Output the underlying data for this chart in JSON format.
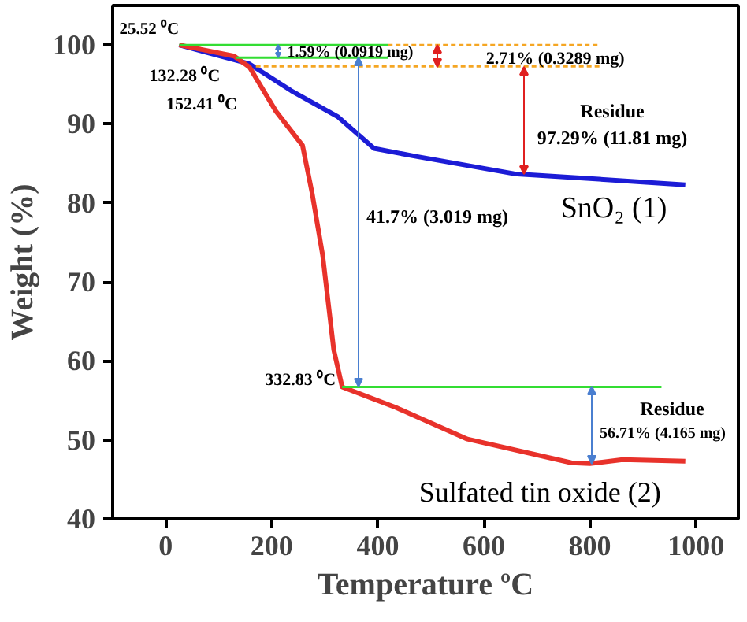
{
  "chart_data": {
    "type": "line",
    "xlabel": "Temperature ºC",
    "ylabel": "Weight (%)",
    "xlim": [
      -100,
      1080
    ],
    "ylim": [
      40,
      105
    ],
    "xticks": [
      0,
      200,
      400,
      600,
      800,
      1000
    ],
    "yticks": [
      40,
      50,
      60,
      70,
      80,
      90,
      100
    ],
    "grid": false,
    "line_style": "solid",
    "marker": "none",
    "series": [
      {
        "color": "#1c1cd6",
        "x": [
          25.52,
          158,
          237,
          325,
          393,
          472,
          657,
          980
        ],
        "values": [
          100,
          97.6,
          94.2,
          90.9,
          86.9,
          85.9,
          83.7,
          82.3
        ]
      },
      {
        "color": "#e8322b",
        "x": [
          25.52,
          129,
          158,
          208,
          258,
          276,
          296,
          317,
          332.83,
          434,
          569,
          765,
          800,
          862,
          980
        ],
        "values": [
          100,
          98.6,
          97.2,
          91.6,
          87.3,
          81.3,
          73.4,
          61.4,
          56.7,
          54.1,
          50.1,
          47.1,
          47.0,
          47.5,
          47.3
        ]
      },
      {
        "color": "#33dd33",
        "x": [
          25.52,
          419
        ],
        "values": [
          100,
          100
        ]
      },
      {
        "color": "#33dd33",
        "x": [
          132.28,
          419
        ],
        "values": [
          98.4,
          98.4
        ]
      },
      {
        "color": "#f5a623",
        "line_style": "dashed",
        "x": [
          419,
          818
        ],
        "values": [
          100,
          100
        ]
      },
      {
        "color": "#f5a623",
        "line_style": "dashed",
        "x": [
          170,
          818
        ],
        "values": [
          97.3,
          97.3
        ]
      },
      {
        "color": "#33dd33",
        "x": [
          332.83,
          935
        ],
        "values": [
          56.7,
          56.7
        ]
      }
    ],
    "annotations": [
      {
        "text": "25.52 ⁰C",
        "x": 25.52,
        "y": 100
      },
      {
        "text": "132.28 ⁰C",
        "x": 132.28,
        "y": 98.4
      },
      {
        "text": "152.41 ⁰C",
        "x": 152.41,
        "y": 97.2
      },
      {
        "text": "332.83 ⁰C",
        "x": 332.83,
        "y": 56.7
      },
      {
        "text": "1.59% (0.0919 mg)",
        "x": 229,
        "y": 99.0
      },
      {
        "text": "2.71% (0.3289 mg)",
        "x": 604,
        "y": 98.2
      },
      "Residue",
      "97.29% (11.81 mg)",
      "41.7% (3.019 mg)",
      "Residue",
      "56.71% (4.165 mg)",
      "SnO₂ (1)",
      {
        "text": "Sulfated tin oxide (2)",
        "x": 792,
        "y": 47.0
      }
    ]
  }
}
